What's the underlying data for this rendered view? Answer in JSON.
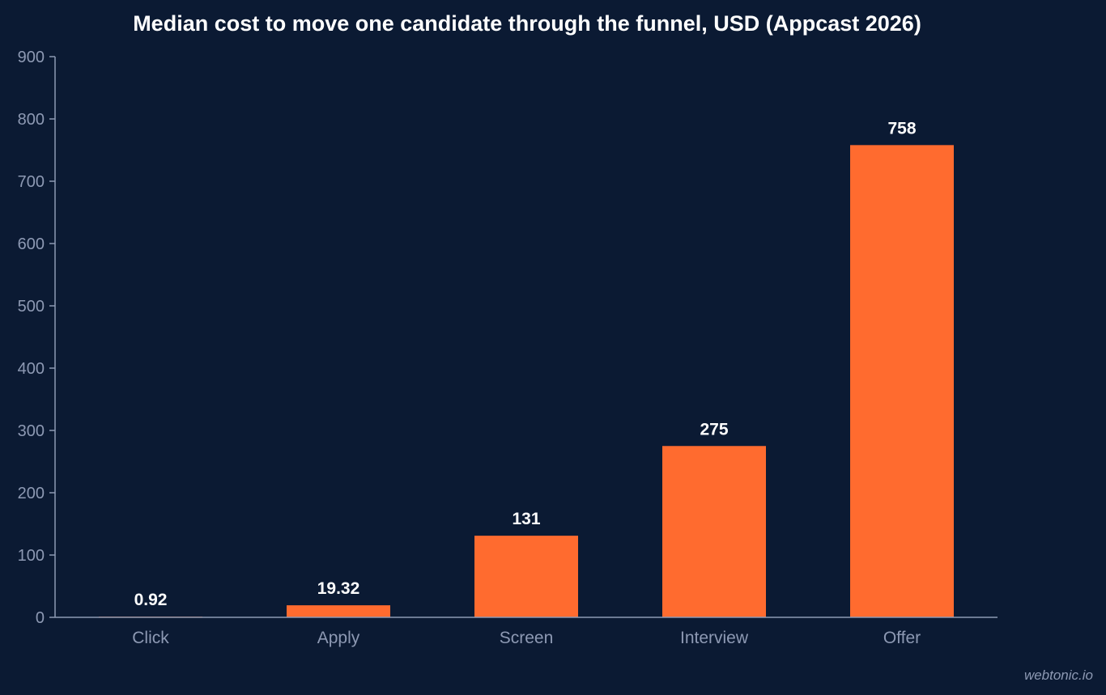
{
  "chart_data": {
    "type": "bar",
    "title": "Median cost to move one candidate through the funnel, USD (Appcast 2026)",
    "xlabel": "",
    "ylabel": "",
    "categories": [
      "Click",
      "Apply",
      "Screen",
      "Interview",
      "Offer"
    ],
    "values": [
      0.92,
      19.32,
      131,
      275,
      758
    ],
    "value_labels": [
      "0.92",
      "19.32",
      "131",
      "275",
      "758"
    ],
    "ylim": [
      0,
      900
    ],
    "yticks": [
      0,
      100,
      200,
      300,
      400,
      500,
      600,
      700,
      800,
      900
    ],
    "grid": false,
    "legend": "none",
    "colors": {
      "background": "#0b1a33",
      "bar": "#ff6b2f",
      "axis": "#8d99b3",
      "tick_text": "#8d99b3",
      "value_text": "#ffffff",
      "title_text": "#ffffff"
    }
  },
  "watermark": "webtonic.io"
}
